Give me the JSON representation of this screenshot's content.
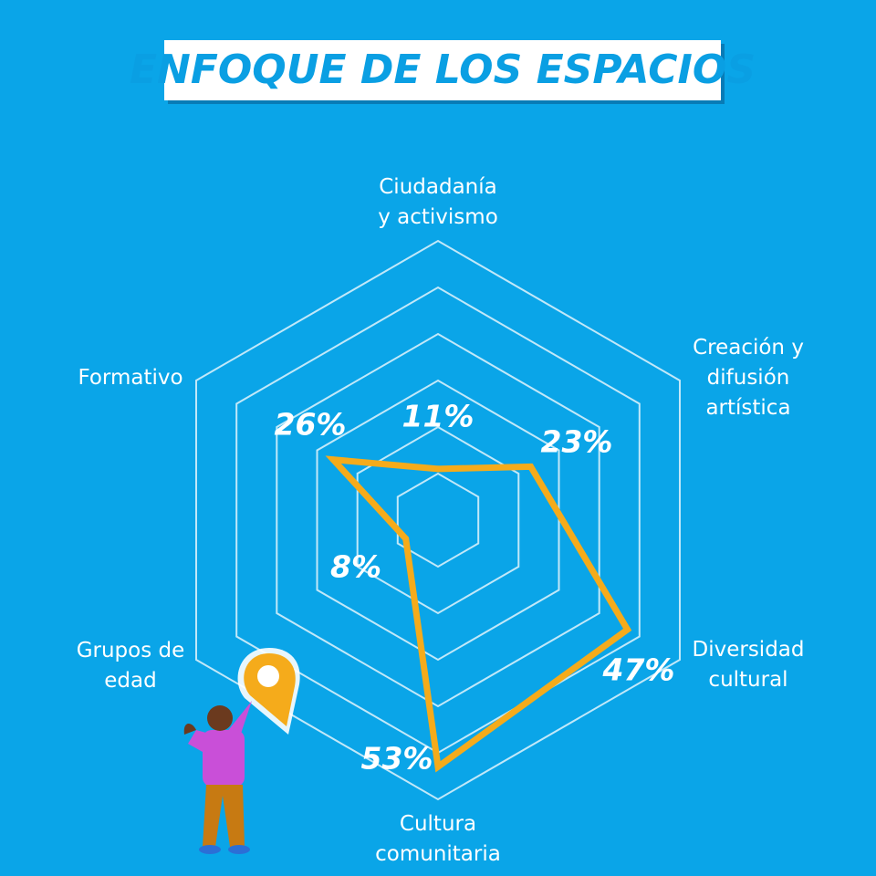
{
  "chart_data": {
    "type": "radar",
    "title": "ENFOQUE DE LOS ESPACIOS",
    "categories": [
      [
        "Ciudadanía",
        "y activismo"
      ],
      [
        "Creación y",
        "difusión",
        "artística"
      ],
      [
        "Diversidad",
        "cultural"
      ],
      [
        "Cultura",
        "comunitaria"
      ],
      [
        "Grupos de",
        "edad"
      ],
      [
        "Formativo"
      ]
    ],
    "values": [
      11,
      23,
      47,
      53,
      8,
      26
    ],
    "value_labels": [
      "11%",
      "23%",
      "47%",
      "53%",
      "8%",
      "26%"
    ],
    "color": "#f5ab1b",
    "ylim": [
      0,
      60
    ],
    "yticks": [
      10,
      20,
      30,
      40,
      50,
      60
    ],
    "grid": true
  }
}
